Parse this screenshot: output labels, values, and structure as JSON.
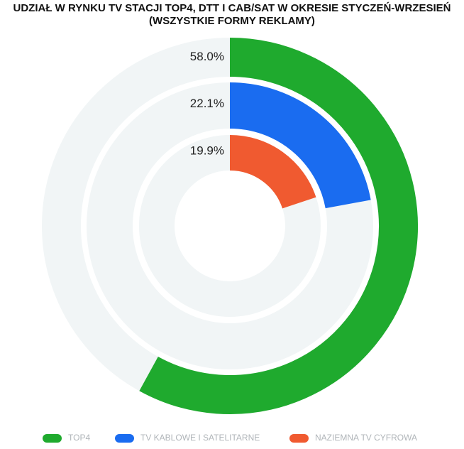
{
  "chart_data": {
    "type": "radial_bar",
    "title": "UDZIAŁ W RYNKU TV STACJI TOP4, DTT I CAB/SAT W OKRESIE STYCZEŃ-WRZESIEŃ",
    "subtitle": "(WSZYSTKIE FORMY REKLAMY)",
    "categories": [
      "TOP4",
      "TV KABLOWE I SATELITARNE",
      "NAZIEMNA TV CYFROWA"
    ],
    "values": [
      58.0,
      22.1,
      19.9
    ],
    "value_labels": [
      "58.0%",
      "22.1%",
      "19.9%"
    ],
    "colors": [
      "#1faa2e",
      "#1a6cf0",
      "#f05a30"
    ],
    "track_color": "#f1f5f6",
    "ylim": [
      0,
      100
    ]
  }
}
